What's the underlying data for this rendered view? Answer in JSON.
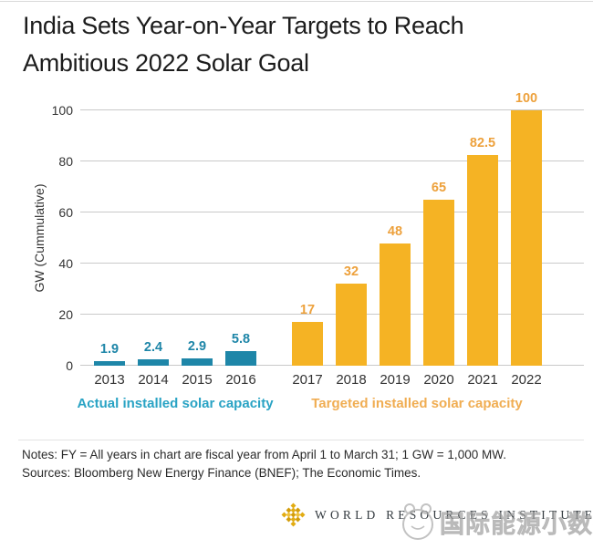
{
  "title": {
    "line1": "India Sets Year-on-Year Targets to Reach",
    "line2": "Ambitious 2022 Solar Goal"
  },
  "chart_data": {
    "type": "bar",
    "categories": [
      "2013",
      "2014",
      "2015",
      "2016",
      "2017",
      "2018",
      "2019",
      "2020",
      "2021",
      "2022"
    ],
    "series": [
      {
        "name": "Actual installed solar capacity",
        "values": [
          1.9,
          2.4,
          2.9,
          5.8,
          null,
          null,
          null,
          null,
          null,
          null
        ],
        "bar_color": "#1e86a8",
        "label_color": "#1e86a8",
        "legend_color": "#29a3c4"
      },
      {
        "name": "Targeted installed solar capacity",
        "values": [
          null,
          null,
          null,
          null,
          17,
          32,
          48,
          65,
          82.5,
          100
        ],
        "bar_color": "#f5b324",
        "label_color": "#eda13c",
        "legend_color": "#f0ad52"
      }
    ],
    "ylabel": "GW (Cummulative)",
    "yticks": [
      0,
      20,
      40,
      60,
      80,
      100
    ],
    "ylim": [
      0,
      100
    ],
    "grid": true,
    "legend_position": "below-groups"
  },
  "notes": "Notes: FY = All years in chart are fiscal year from April 1 to March 31; 1 GW = 1,000 MW.",
  "sources": "Sources: Bloomberg New Energy Finance (BNEF); The Economic Times.",
  "footer": {
    "logo_text": "WORLD RESOURCES INSTITUTE"
  },
  "watermark": {
    "text": "国际能源小数据"
  },
  "colors": {
    "actual_bar": "#1e86a8",
    "target_bar": "#f5b324",
    "gridline": "#c9c9c9",
    "title_text": "#1c1c1c",
    "logo_gold": "#e2ac13"
  }
}
